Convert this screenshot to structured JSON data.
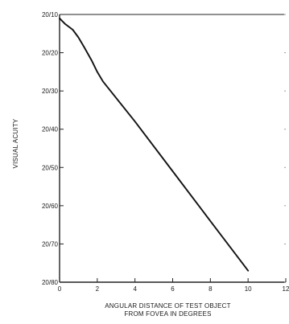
{
  "chart_data": {
    "type": "line",
    "title": "",
    "xlabel": [
      "ANGULAR DISTANCE OF TEST OBJECT",
      "FROM FOVEA IN DEGREES"
    ],
    "ylabel": "VISUAL ACUITY",
    "xlim": [
      0,
      12
    ],
    "x_ticks": [
      0,
      2,
      4,
      6,
      8,
      10,
      12
    ],
    "x_tick_labels": [
      "0",
      "2",
      "4",
      "6",
      "8",
      "10",
      "12"
    ],
    "ylim": [
      10,
      80
    ],
    "y_ticks": [
      10,
      20,
      30,
      40,
      50,
      60,
      70,
      80
    ],
    "y_tick_labels": [
      "20/10",
      "20/20",
      "20/30",
      "20/40",
      "20/50",
      "20/60",
      "20/70",
      "20/80"
    ],
    "y_inverted": true,
    "grid": false,
    "series": [
      {
        "x": [
          0,
          0.3,
          0.7,
          1.0,
          1.3,
          1.7,
          2.0,
          2.3,
          4,
          6,
          8,
          10
        ],
        "y": [
          11,
          12.5,
          14,
          16,
          18.5,
          22,
          25,
          27.5,
          38,
          51,
          64,
          77
        ]
      }
    ]
  }
}
